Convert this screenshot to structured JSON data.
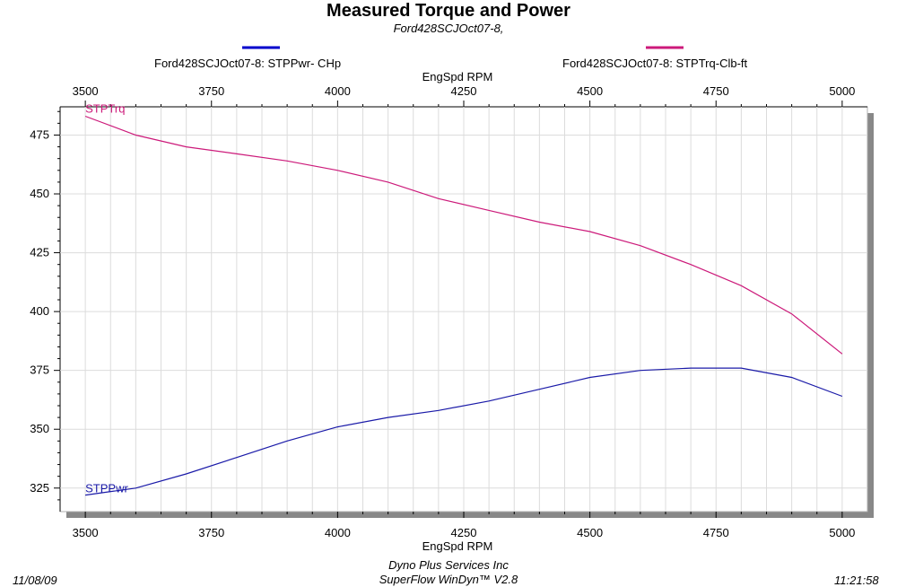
{
  "chart_data": {
    "type": "line",
    "title": "Measured Torque and Power",
    "subtitle": "Ford428SCJOct07-8,",
    "xlabel": "EngSpd  RPM",
    "xlim": [
      3450,
      5050
    ],
    "ylim": [
      315,
      487
    ],
    "x_ticks": [
      3500,
      3750,
      4000,
      4250,
      4500,
      4750,
      5000
    ],
    "y_ticks": [
      325,
      350,
      375,
      400,
      425,
      450,
      475
    ],
    "grid": true,
    "legend_position": "top",
    "series": [
      {
        "name": "Ford428SCJOct07-8: STPPwr- CHp",
        "label": "STPPwr",
        "color": "#1a1aa8",
        "x": [
          3500,
          3600,
          3700,
          3800,
          3900,
          4000,
          4100,
          4200,
          4300,
          4400,
          4500,
          4600,
          4700,
          4800,
          4900,
          5000
        ],
        "y": [
          322,
          325,
          331,
          338,
          345,
          351,
          355,
          358,
          362,
          367,
          372,
          375,
          376,
          376,
          372,
          364
        ]
      },
      {
        "name": "Ford428SCJOct07-8: STPTrq-Clb-ft",
        "label": "STPTrq",
        "color": "#cc1a7a",
        "x": [
          3500,
          3600,
          3700,
          3800,
          3900,
          4000,
          4100,
          4200,
          4300,
          4400,
          4500,
          4600,
          4700,
          4800,
          4900,
          5000
        ],
        "y": [
          483,
          475,
          470,
          467,
          464,
          460,
          455,
          448,
          443,
          438,
          434,
          428,
          420,
          411,
          399,
          382
        ]
      }
    ]
  },
  "legend_colors": {
    "power": "#0000cc",
    "torque": "#cc1a7a"
  },
  "footer": {
    "date": "11/08/09",
    "company": "Dyno Plus Services Inc",
    "software": "SuperFlow WinDyn™ V2.8",
    "time": "11:21:58"
  }
}
